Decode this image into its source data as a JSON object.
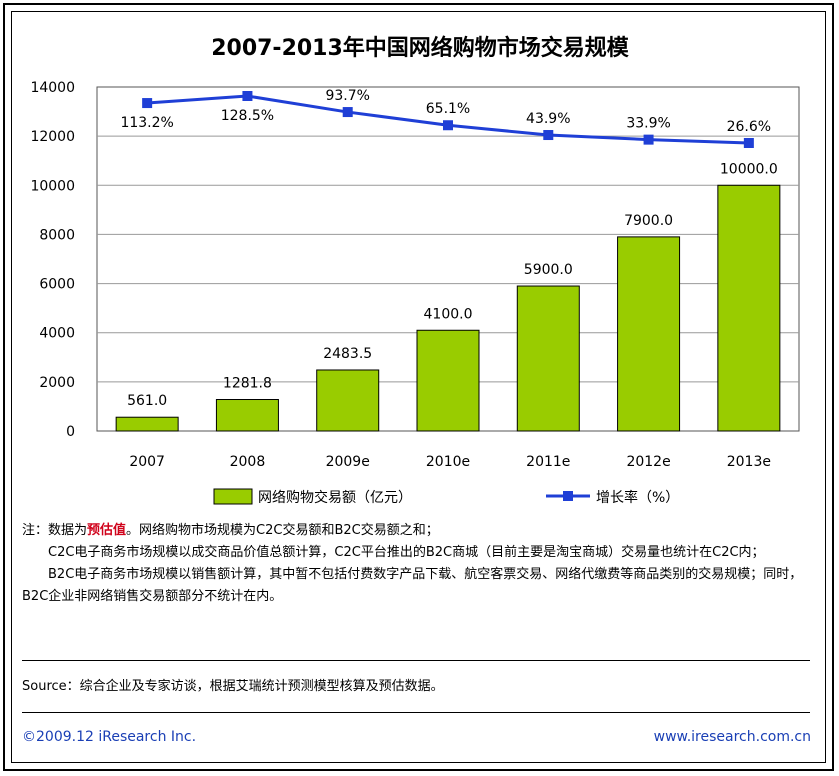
{
  "chart_data": {
    "type": "bar",
    "title": "2007-2013年中国网络购物市场交易规模",
    "categories": [
      "2007",
      "2008",
      "2009e",
      "2010e",
      "2011e",
      "2012e",
      "2013e"
    ],
    "series": [
      {
        "name": "网络购物交易额（亿元）",
        "type": "bar",
        "color": "#99cc00",
        "values": [
          561.0,
          1281.8,
          2483.5,
          4100.0,
          5900.0,
          7900.0,
          10000.0
        ],
        "labels": [
          "561.0",
          "1281.8",
          "2483.5",
          "4100.0",
          "5900.0",
          "7900.0",
          "10000.0"
        ]
      },
      {
        "name": "增长率（%）",
        "type": "line",
        "color": "#1f3fd6",
        "values": [
          113.2,
          128.5,
          93.7,
          65.1,
          43.9,
          33.9,
          26.6
        ],
        "labels": [
          "113.2%",
          "128.5%",
          "93.7%",
          "65.1%",
          "43.9%",
          "33.9%",
          "26.6%"
        ]
      }
    ],
    "yticks": [
      "0",
      "2000",
      "4000",
      "6000",
      "8000",
      "10000",
      "12000",
      "14000"
    ],
    "ylim": [
      0,
      14000
    ],
    "grid": true,
    "legend": "bottom"
  },
  "notes": {
    "prefix": "注：数据为",
    "highlight": "预估值",
    "line1_rest": "。网络购物市场规模为C2C交易额和B2C交易额之和；",
    "para2": "C2C电子商务市场规模以成交商品价值总额计算，C2C平台推出的B2C商城（目前主要是淘宝商城）交易量也统计在C2C内；",
    "para3": "B2C电子商务市场规模以销售额计算，其中暂不包括付费数字产品下载、航空客票交易、网络代缴费等商品类别的交易规模；同时，B2C企业非网络销售交易额部分不统计在内。"
  },
  "source": "Source：综合企业及专家访谈，根据艾瑞统计预测模型核算及预估数据。",
  "footer": {
    "copyright": "©2009.12 iResearch Inc.",
    "website": "www.iresearch.com.cn"
  }
}
